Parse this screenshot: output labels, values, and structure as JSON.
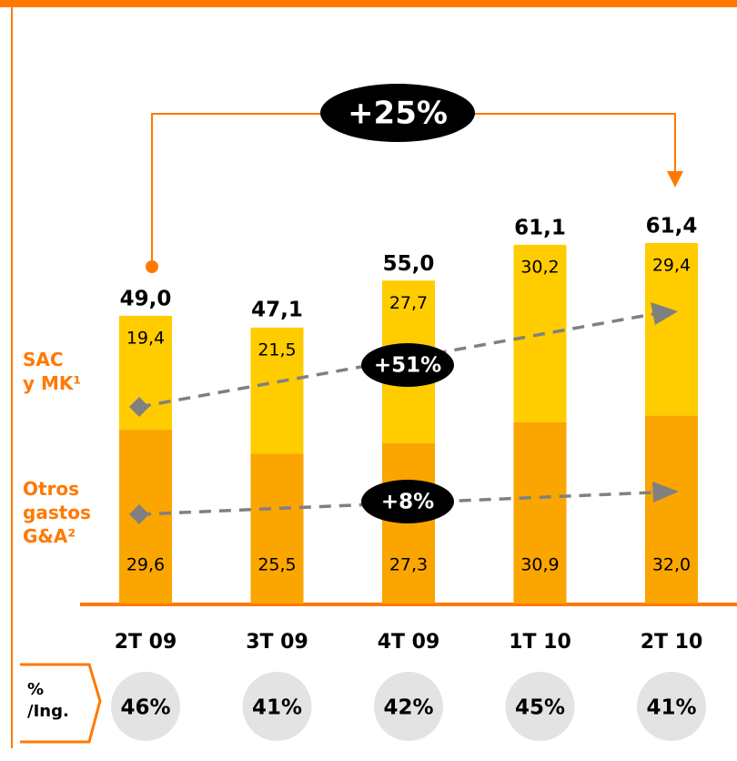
{
  "chart_data": {
    "type": "bar",
    "categories": [
      "2T 09",
      "3T 09",
      "4T 09",
      "1T 10",
      "2T 10"
    ],
    "series": [
      {
        "name": "Otros\ngastos\nG&A²",
        "color": "#fba500",
        "values": [
          29.6,
          25.5,
          27.3,
          30.9,
          32.0
        ],
        "value_labels": [
          "29,6",
          "25,5",
          "27,3",
          "30,9",
          "32,0"
        ]
      },
      {
        "name": "SAC\ny MK¹",
        "color": "#ffcc00",
        "values": [
          19.4,
          21.5,
          27.7,
          30.2,
          29.4
        ],
        "value_labels": [
          "19,4",
          "21,5",
          "27,7",
          "30,2",
          "29,4"
        ]
      }
    ],
    "totals": [
      49.0,
      47.1,
      55.0,
      61.1,
      61.4
    ],
    "total_labels": [
      "49,0",
      "47,1",
      "55,0",
      "61,1",
      "61,4"
    ],
    "annotations": [
      "+25%",
      "+51%",
      "+8%"
    ],
    "ratio_title": "%\n/Ing.",
    "ratio_values": [
      46,
      41,
      42,
      45,
      41
    ],
    "ratio_labels": [
      "46%",
      "41%",
      "42%",
      "45%",
      "41%"
    ],
    "stacked": true
  }
}
